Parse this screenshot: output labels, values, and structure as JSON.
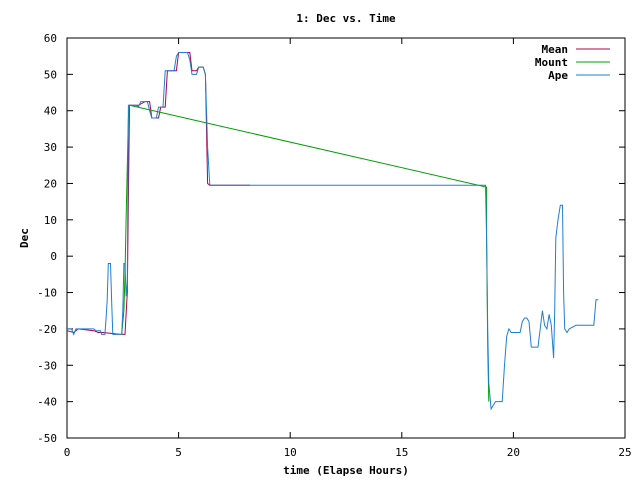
{
  "chart_data": {
    "type": "line",
    "title": "1: Dec vs. Time",
    "xlabel": "time (Elapse Hours)",
    "ylabel": "Dec",
    "xlim": [
      0,
      25
    ],
    "ylim": [
      -50,
      60
    ],
    "xticks": [
      0,
      5,
      10,
      15,
      20,
      25
    ],
    "yticks": [
      -50,
      -40,
      -30,
      -20,
      -10,
      0,
      10,
      20,
      30,
      40,
      50,
      60
    ],
    "grid": false,
    "legend_position": "top-right",
    "series": [
      {
        "name": "Mean",
        "color": "#b0004a",
        "points": [
          [
            0,
            -20.5
          ],
          [
            0.3,
            -21
          ],
          [
            0.5,
            -20
          ],
          [
            1.2,
            -20.5
          ],
          [
            1.4,
            -21
          ],
          [
            1.6,
            -21
          ],
          [
            2.4,
            -21.5
          ],
          [
            2.6,
            -21.5
          ],
          [
            2.7,
            -10
          ],
          [
            2.8,
            41.5
          ],
          [
            3.2,
            41.5
          ],
          [
            3.5,
            42.5
          ],
          [
            3.7,
            42.5
          ],
          [
            3.8,
            38
          ],
          [
            4.1,
            38
          ],
          [
            4.2,
            41
          ],
          [
            4.4,
            41
          ],
          [
            4.5,
            51
          ],
          [
            4.9,
            51
          ],
          [
            5.0,
            56
          ],
          [
            5.5,
            56
          ],
          [
            5.6,
            51
          ],
          [
            5.8,
            51
          ],
          [
            5.9,
            52
          ],
          [
            6.1,
            52
          ],
          [
            6.2,
            50
          ],
          [
            6.3,
            20
          ],
          [
            6.4,
            19.5
          ],
          [
            8.2,
            19.5
          ]
        ]
      },
      {
        "name": "Mount",
        "color": "#00a000",
        "points": [
          [
            2.45,
            -21.5
          ],
          [
            2.55,
            -15
          ],
          [
            2.6,
            -5
          ],
          [
            2.65,
            10
          ],
          [
            2.7,
            25
          ],
          [
            2.75,
            38
          ],
          [
            2.8,
            41.5
          ],
          [
            18.8,
            19
          ],
          [
            18.8,
            5
          ],
          [
            18.85,
            -25
          ],
          [
            18.9,
            -40
          ]
        ]
      },
      {
        "name": "Ape",
        "color": "#1f7fd0",
        "points": [
          [
            0,
            -20
          ],
          [
            0.2,
            -20
          ],
          [
            0.3,
            -21.5
          ],
          [
            0.4,
            -20
          ],
          [
            1.2,
            -20
          ],
          [
            1.3,
            -20.5
          ],
          [
            1.5,
            -20.5
          ],
          [
            1.55,
            -21.5
          ],
          [
            1.7,
            -21.5
          ],
          [
            1.75,
            -17
          ],
          [
            1.8,
            -12
          ],
          [
            1.85,
            -2
          ],
          [
            1.95,
            -2
          ],
          [
            2.0,
            -12
          ],
          [
            2.05,
            -21.5
          ],
          [
            2.45,
            -21.5
          ],
          [
            2.5,
            -15
          ],
          [
            2.55,
            -2
          ],
          [
            2.6,
            -2
          ],
          [
            2.65,
            -11
          ],
          [
            2.7,
            -7
          ],
          [
            2.75,
            41.5
          ],
          [
            3.1,
            41.5
          ],
          [
            3.2,
            41
          ],
          [
            3.3,
            42.5
          ],
          [
            3.6,
            42.5
          ],
          [
            3.7,
            40
          ],
          [
            3.8,
            38
          ],
          [
            4.0,
            38
          ],
          [
            4.1,
            41
          ],
          [
            4.3,
            41
          ],
          [
            4.4,
            51
          ],
          [
            4.8,
            51
          ],
          [
            4.9,
            55
          ],
          [
            5.0,
            56
          ],
          [
            5.4,
            56
          ],
          [
            5.5,
            54
          ],
          [
            5.6,
            50
          ],
          [
            5.8,
            50
          ],
          [
            5.9,
            52
          ],
          [
            6.1,
            52
          ],
          [
            6.15,
            51
          ],
          [
            6.2,
            50
          ],
          [
            6.25,
            40
          ],
          [
            6.3,
            30
          ],
          [
            6.4,
            19.5
          ],
          [
            18.75,
            19.5
          ],
          [
            18.8,
            5
          ],
          [
            18.85,
            -20
          ],
          [
            18.9,
            -35
          ],
          [
            19.0,
            -42
          ],
          [
            19.1,
            -41
          ],
          [
            19.2,
            -40
          ],
          [
            19.5,
            -40
          ],
          [
            19.6,
            -30
          ],
          [
            19.7,
            -22
          ],
          [
            19.8,
            -20
          ],
          [
            19.9,
            -21
          ],
          [
            20.3,
            -21
          ],
          [
            20.4,
            -18
          ],
          [
            20.5,
            -17
          ],
          [
            20.6,
            -17
          ],
          [
            20.7,
            -18
          ],
          [
            20.8,
            -25
          ],
          [
            21.1,
            -25
          ],
          [
            21.2,
            -20
          ],
          [
            21.3,
            -15
          ],
          [
            21.4,
            -19
          ],
          [
            21.5,
            -20
          ],
          [
            21.6,
            -16
          ],
          [
            21.7,
            -19
          ],
          [
            21.8,
            -28
          ],
          [
            21.85,
            -15
          ],
          [
            21.9,
            5
          ],
          [
            22.0,
            10
          ],
          [
            22.1,
            14
          ],
          [
            22.2,
            14
          ],
          [
            22.25,
            -10
          ],
          [
            22.3,
            -20
          ],
          [
            22.4,
            -21
          ],
          [
            22.5,
            -20
          ],
          [
            22.8,
            -19
          ],
          [
            23.6,
            -19
          ],
          [
            23.7,
            -12
          ],
          [
            23.8,
            -12
          ]
        ]
      }
    ]
  }
}
